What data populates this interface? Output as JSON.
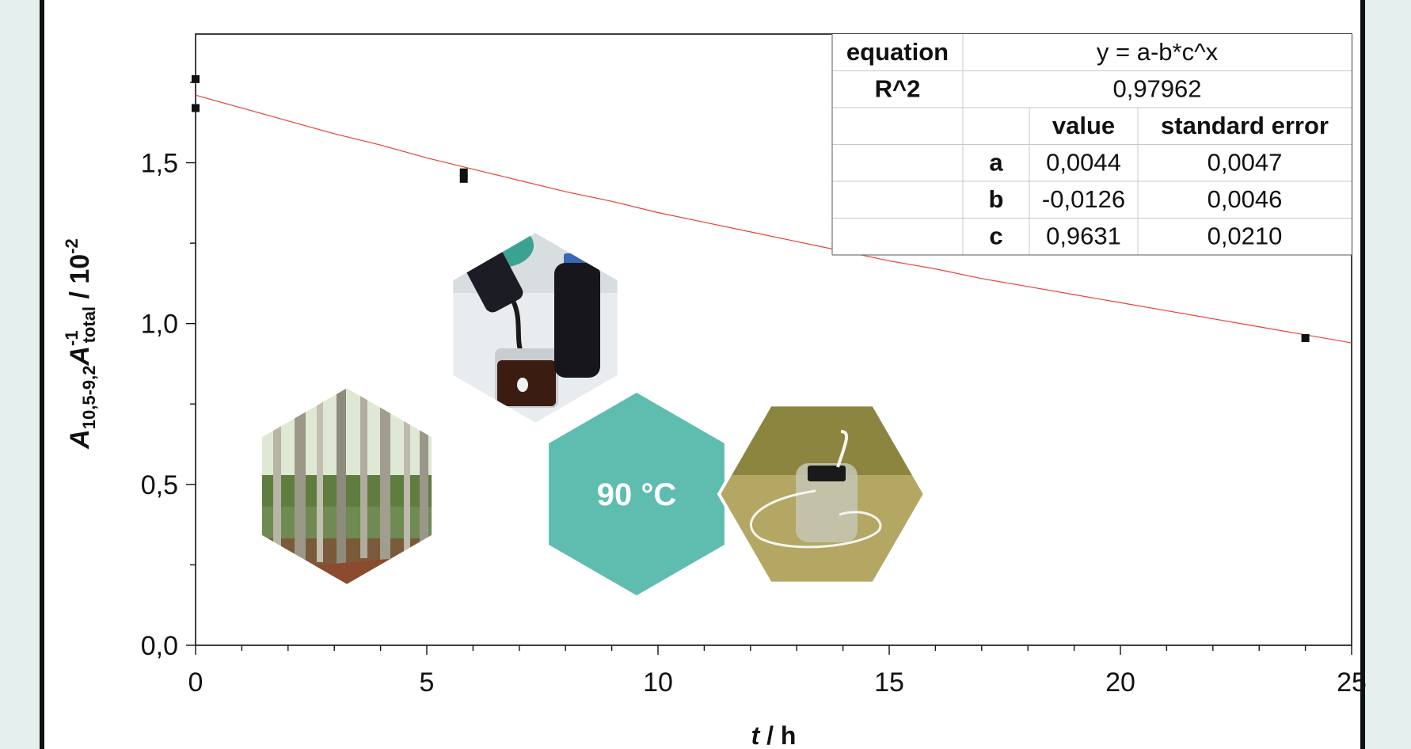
{
  "chart_data": {
    "type": "scatter",
    "xlabel_italic": "t",
    "xlabel_rest": " / h",
    "ylabel": {
      "a_main": "A",
      "a_sub": "10,5-9,2",
      "b_main": "A",
      "b_sup": "-1",
      "b_sub": "total",
      "unit": " / 10",
      "unit_sup": "-2"
    },
    "xlim": [
      0,
      25
    ],
    "ylim": [
      0,
      1.9
    ],
    "x_ticks": [
      0,
      5,
      10,
      15,
      20,
      25
    ],
    "x_tick_labels": [
      "0",
      "5",
      "10",
      "15",
      "20",
      "25"
    ],
    "y_ticks": [
      0,
      0.5,
      1.0,
      1.5
    ],
    "y_tick_labels": [
      "0,0",
      "0,5",
      "1,0",
      "1,5"
    ],
    "series": [
      {
        "points": [
          {
            "x": 0,
            "y": 1.76
          },
          {
            "x": 0,
            "y": 1.67
          },
          {
            "x": 5.8,
            "y": 1.47
          },
          {
            "x": 5.8,
            "y": 1.45
          },
          {
            "x": 24,
            "y": 0.955
          }
        ],
        "color": "#111111"
      }
    ],
    "fit": {
      "model": "y = a-b*c^x",
      "color": "#e8413c",
      "curve": [
        {
          "x": 0,
          "y": 1.71
        },
        {
          "x": 1,
          "y": 1.67
        },
        {
          "x": 2,
          "y": 1.63
        },
        {
          "x": 3,
          "y": 1.59
        },
        {
          "x": 4,
          "y": 1.555
        },
        {
          "x": 5,
          "y": 1.515
        },
        {
          "x": 6,
          "y": 1.48
        },
        {
          "x": 7,
          "y": 1.445
        },
        {
          "x": 8,
          "y": 1.41
        },
        {
          "x": 9,
          "y": 1.38
        },
        {
          "x": 10,
          "y": 1.345
        },
        {
          "x": 11,
          "y": 1.315
        },
        {
          "x": 12,
          "y": 1.285
        },
        {
          "x": 13,
          "y": 1.255
        },
        {
          "x": 14,
          "y": 1.225
        },
        {
          "x": 15,
          "y": 1.195
        },
        {
          "x": 16,
          "y": 1.17
        },
        {
          "x": 17,
          "y": 1.14
        },
        {
          "x": 18,
          "y": 1.115
        },
        {
          "x": 19,
          "y": 1.09
        },
        {
          "x": 20,
          "y": 1.065
        },
        {
          "x": 21,
          "y": 1.04
        },
        {
          "x": 22,
          "y": 1.015
        },
        {
          "x": 23,
          "y": 0.99
        },
        {
          "x": 24,
          "y": 0.965
        },
        {
          "x": 25,
          "y": 0.94
        }
      ]
    },
    "fit_table": {
      "equation_label": "equation",
      "equation_value": "y = a-b*c^x",
      "r2_label": "R^2",
      "r2_value": "0,97962",
      "value_header": "value",
      "error_header": "standard error",
      "params": [
        {
          "name": "a",
          "value": "0,0044",
          "error": "0,0047"
        },
        {
          "name": "b",
          "value": "-0,0126",
          "error": "0,0046"
        },
        {
          "name": "c",
          "value": "0,9631",
          "error": "0,0210"
        }
      ]
    },
    "grid": false,
    "legend": "none"
  },
  "overlay": {
    "temperature_label": "90 °C",
    "hexagon_color": "#5fbdb0",
    "photo_icons": [
      "forest-photo-icon",
      "dark-liquid-pouring-photo-icon",
      "bottle-on-sand-photo-icon"
    ]
  }
}
